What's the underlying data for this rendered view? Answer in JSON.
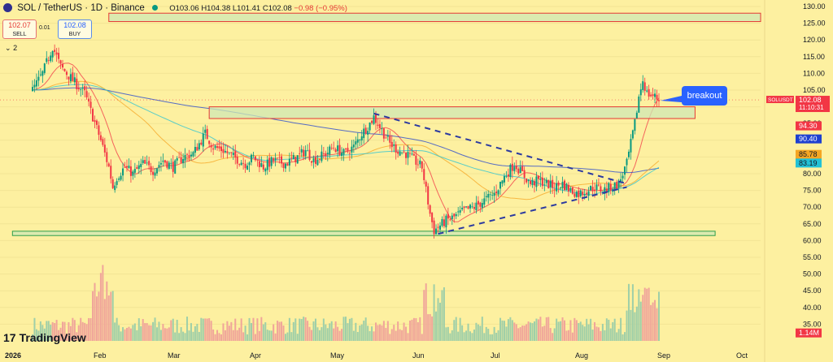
{
  "header": {
    "symbol": "SOL / TetherUS · 1D · Binance",
    "open": "O103.06",
    "high": "H104.38",
    "low": "L101.41",
    "close": "C102.08",
    "change": "−0.98 (−0.95%)"
  },
  "trade_buttons": {
    "sell_price": "102.07",
    "sell_label": "SELL",
    "spread": "0.01",
    "buy_price": "102.08",
    "buy_label": "BUY"
  },
  "indicator_count": "2",
  "branding": {
    "logo_text": "TradingView"
  },
  "annotation": {
    "callout": "breakout"
  },
  "colors": {
    "background": "#fdf0a0",
    "up": "#089981",
    "down": "#f23645",
    "zone_fill": "#cfe8b4",
    "zone_border": "#e53935",
    "support_border": "#2e9e4a",
    "trendline": "#2c3aa0",
    "callout": "#2962ff"
  },
  "chart_data": {
    "type": "candlestick",
    "symbol": "SOLUSDT",
    "timeframe": "1D",
    "y_axis": {
      "range": [
        30,
        130
      ],
      "ticks": [
        "130.00",
        "125.00",
        "120.00",
        "115.00",
        "110.00",
        "105.00",
        "100.00",
        "95.00",
        "90.00",
        "85.00",
        "80.00",
        "75.00",
        "70.00",
        "65.00",
        "60.00",
        "55.00",
        "50.00",
        "45.00",
        "40.00",
        "35.00"
      ],
      "scale": "linear",
      "position": "right"
    },
    "x_axis": {
      "ticks": [
        "2026",
        "Feb",
        "Mar",
        "Apr",
        "May",
        "Jun",
        "Jul",
        "Aug",
        "Sep",
        "Oct"
      ]
    },
    "price_labels": [
      {
        "label": "SOLUSDT",
        "value": "102.08",
        "timer": "11:10:31",
        "color": "#f23645"
      },
      {
        "value": "94.30",
        "color": "#f23645"
      },
      {
        "value": "90.40",
        "color": "#1e40d0"
      },
      {
        "value": "85.78",
        "color": "#f5a623"
      },
      {
        "value": "83.19",
        "color": "#22c1d6"
      },
      {
        "value": "1.14M",
        "color": "#f23645"
      }
    ],
    "price_path": [
      [
        0,
        105
      ],
      [
        5,
        110
      ],
      [
        10,
        118
      ],
      [
        14,
        112
      ],
      [
        20,
        108
      ],
      [
        26,
        104
      ],
      [
        30,
        97
      ],
      [
        34,
        90
      ],
      [
        38,
        82
      ],
      [
        40,
        76
      ],
      [
        42,
        79
      ],
      [
        46,
        82
      ],
      [
        50,
        80
      ],
      [
        55,
        83
      ],
      [
        60,
        81
      ],
      [
        65,
        84
      ],
      [
        70,
        82
      ],
      [
        75,
        85
      ],
      [
        80,
        86
      ],
      [
        86,
        92
      ],
      [
        90,
        88
      ],
      [
        95,
        87
      ],
      [
        100,
        85
      ],
      [
        106,
        83
      ],
      [
        110,
        85
      ],
      [
        115,
        82
      ],
      [
        120,
        84
      ],
      [
        126,
        83
      ],
      [
        132,
        85
      ],
      [
        136,
        87
      ],
      [
        140,
        84
      ],
      [
        146,
        86
      ],
      [
        150,
        88
      ],
      [
        155,
        86
      ],
      [
        160,
        88
      ],
      [
        164,
        92
      ],
      [
        168,
        95
      ],
      [
        170,
        97
      ],
      [
        174,
        93
      ],
      [
        178,
        89
      ],
      [
        182,
        87
      ],
      [
        186,
        86
      ],
      [
        190,
        84
      ],
      [
        194,
        82
      ],
      [
        196,
        75
      ],
      [
        198,
        68
      ],
      [
        200,
        63
      ],
      [
        202,
        64
      ],
      [
        206,
        66
      ],
      [
        210,
        67
      ],
      [
        215,
        69
      ],
      [
        220,
        70
      ],
      [
        225,
        72
      ],
      [
        230,
        74
      ],
      [
        235,
        79
      ],
      [
        240,
        83
      ],
      [
        244,
        80
      ],
      [
        248,
        77
      ],
      [
        252,
        78
      ],
      [
        256,
        77
      ],
      [
        260,
        76
      ],
      [
        264,
        77
      ],
      [
        268,
        75
      ],
      [
        272,
        74
      ],
      [
        276,
        75
      ],
      [
        280,
        76
      ],
      [
        284,
        75
      ],
      [
        288,
        76
      ],
      [
        292,
        77
      ],
      [
        296,
        83
      ],
      [
        300,
        95
      ],
      [
        302,
        103
      ],
      [
        304,
        108
      ],
      [
        306,
        104
      ],
      [
        310,
        103
      ],
      [
        312,
        102.08
      ]
    ],
    "moving_averages": [
      {
        "color": "#f23645",
        "end_value": 94.3
      },
      {
        "color": "#1e40d0",
        "end_value": 90.4
      },
      {
        "color": "#f5a623",
        "end_value": 85.78
      },
      {
        "color": "#22c1d6",
        "end_value": 83.19
      }
    ],
    "zones": [
      {
        "kind": "resistance",
        "y_low": 125.5,
        "y_high": 128,
        "x_start_day": 38,
        "x_end_day": 400
      },
      {
        "kind": "resistance",
        "y_low": 96.5,
        "y_high": 100,
        "x_start_day": 88,
        "x_end_day": 330
      },
      {
        "kind": "support",
        "y_low": 61.5,
        "y_high": 62.8,
        "x_start_day": -10,
        "x_end_day": 340
      }
    ],
    "trendlines": [
      {
        "style": "dashed",
        "from": [
          170,
          98
        ],
        "to": [
          296,
          77
        ]
      },
      {
        "style": "dashed",
        "from": [
          202,
          62
        ],
        "to": [
          296,
          76
        ]
      }
    ],
    "last_price": 102.08
  }
}
